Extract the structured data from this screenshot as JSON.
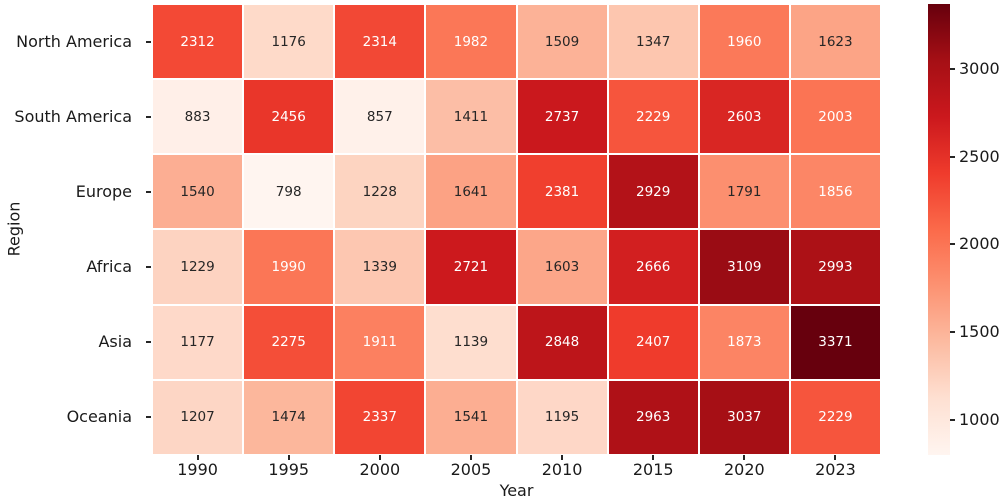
{
  "chart_data": {
    "type": "heatmap",
    "xlabel": "Year",
    "ylabel": "Region",
    "x": [
      "1990",
      "1995",
      "2000",
      "2005",
      "2010",
      "2015",
      "2020",
      "2023"
    ],
    "y": [
      "North America",
      "South America",
      "Europe",
      "Africa",
      "Asia",
      "Oceania"
    ],
    "values": [
      [
        2312,
        1176,
        2314,
        1982,
        1509,
        1347,
        1960,
        1623
      ],
      [
        883,
        2456,
        857,
        1411,
        2737,
        2229,
        2603,
        2003
      ],
      [
        1540,
        798,
        1228,
        1641,
        2381,
        2929,
        1791,
        1856
      ],
      [
        1229,
        1990,
        1339,
        2721,
        1603,
        2666,
        3109,
        2993
      ],
      [
        1177,
        2275,
        1911,
        1139,
        2848,
        2407,
        1873,
        3371
      ],
      [
        1207,
        1474,
        2337,
        1541,
        1195,
        2963,
        3037,
        2229
      ]
    ],
    "vmin": 798,
    "vmax": 3371,
    "annotated": true,
    "grid_line_color": "#ffffff",
    "colormap": "Reds",
    "colormap_stops": [
      [
        0.0,
        "#fff5f0"
      ],
      [
        0.125,
        "#fee0d2"
      ],
      [
        0.25,
        "#fcbba1"
      ],
      [
        0.375,
        "#fc9272"
      ],
      [
        0.5,
        "#fb6a4a"
      ],
      [
        0.625,
        "#ef3b2c"
      ],
      [
        0.75,
        "#cb181d"
      ],
      [
        0.875,
        "#a50f15"
      ],
      [
        1.0,
        "#67000d"
      ]
    ],
    "annot_dark_text_color": "#262626",
    "annot_light_text_color": "#ffffff",
    "colorbar": {
      "ticks": [
        1000,
        1500,
        2000,
        2500,
        3000
      ],
      "tick_labels": [
        "1000",
        "1500",
        "2000",
        "2500",
        "3000"
      ],
      "position": "right"
    },
    "legend": "none",
    "title": ""
  }
}
